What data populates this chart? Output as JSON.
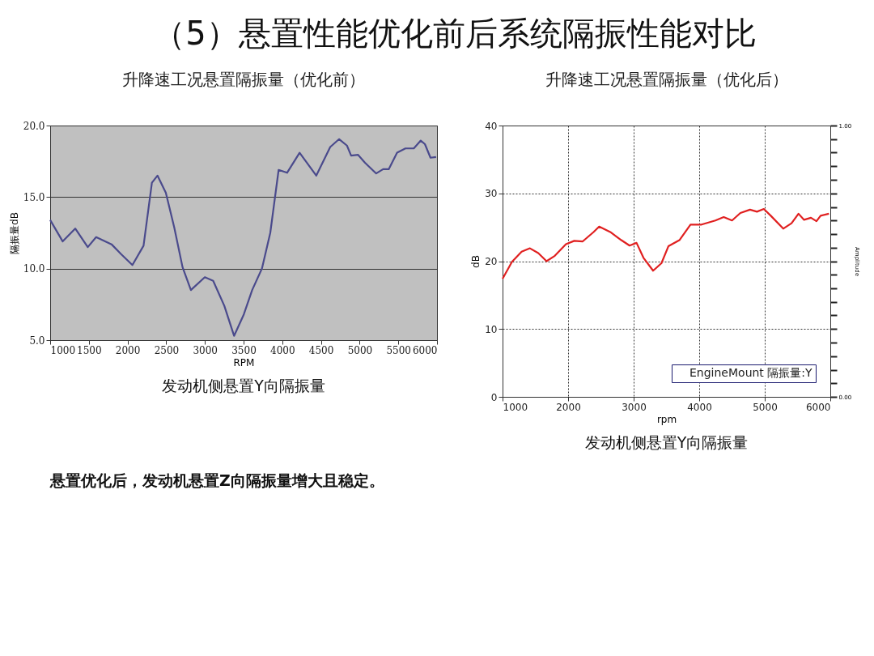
{
  "chart_data": [
    {
      "type": "line",
      "title": "升降速工况悬置隔振量（优化前）",
      "xlabel": "RPM",
      "ylabel": "隔振量dB",
      "annotations": [
        "（5）悬置性能优化前后系统隔振性能对比",
        "发动机侧悬置Y向隔振量"
      ],
      "xlim": [
        1000,
        6000
      ],
      "xticks": [
        1000,
        1500,
        2000,
        2500,
        3000,
        3500,
        4000,
        4500,
        5000,
        5500,
        6000
      ],
      "ylim": [
        5,
        20
      ],
      "yticks": [
        {
          "value": 5,
          "label": "5.0"
        },
        {
          "value": 10,
          "label": "10.0"
        },
        {
          "value": 15,
          "label": "15.0"
        },
        {
          "value": 20,
          "label": "20.0"
        }
      ],
      "grid": "y",
      "legend": false,
      "marker": "none",
      "line_style": "solid",
      "series": [
        {
          "color": "#4a4a8c",
          "x": [
            1000,
            1162,
            1324,
            1486,
            1594,
            1793,
            1919,
            2063,
            2207,
            2315,
            2387,
            2495,
            2603,
            2711,
            2819,
            2999,
            3107,
            3251,
            3377,
            3503,
            3611,
            3737,
            3845,
            3953,
            4062,
            4224,
            4440,
            4620,
            4735,
            4836,
            4890,
            4980,
            5070,
            5214,
            5304,
            5376,
            5484,
            5592,
            5700,
            5790,
            5844,
            5916,
            5988
          ],
          "values": [
            13.4,
            11.9,
            12.8,
            11.5,
            12.2,
            11.7,
            11.0,
            10.25,
            11.6,
            16.0,
            16.5,
            15.3,
            12.9,
            10.1,
            8.5,
            9.4,
            9.15,
            7.4,
            5.3,
            6.8,
            8.5,
            10.0,
            12.5,
            16.9,
            16.7,
            18.1,
            16.5,
            18.5,
            19.05,
            18.6,
            17.9,
            17.95,
            17.4,
            16.65,
            16.95,
            16.95,
            18.1,
            18.4,
            18.4,
            18.95,
            18.7,
            17.75,
            17.8
          ]
        }
      ]
    },
    {
      "type": "line",
      "title": "升降速工况悬置隔振量（优化后）",
      "xlabel": "rpm",
      "ylabel": "dB",
      "y2label": "Amplitude",
      "annotations": [
        "发动机侧悬置Y向隔振量",
        "悬置优化后，发动机悬置Z向隔振量增大且稳定。"
      ],
      "xlim": [
        1000,
        6000
      ],
      "xticks": [
        1000,
        2000,
        3000,
        4000,
        5000,
        6000
      ],
      "ylim": [
        0,
        40
      ],
      "yticks": [
        0,
        10,
        20,
        30,
        40
      ],
      "y2lim": [
        0,
        1
      ],
      "y2ticks": [
        {
          "value": 0,
          "label": "0.00"
        },
        {
          "value": 0.05,
          "label": null
        },
        {
          "value": 0.1,
          "label": null
        },
        {
          "value": 0.15,
          "label": null
        },
        {
          "value": 0.2,
          "label": null
        },
        {
          "value": 0.25,
          "label": null
        },
        {
          "value": 0.3,
          "label": null
        },
        {
          "value": 0.35,
          "label": null
        },
        {
          "value": 0.4,
          "label": null
        },
        {
          "value": 0.45,
          "label": null
        },
        {
          "value": 0.5,
          "label": null
        },
        {
          "value": 0.55,
          "label": null
        },
        {
          "value": 0.6,
          "label": null
        },
        {
          "value": 0.65,
          "label": null
        },
        {
          "value": 0.7,
          "label": null
        },
        {
          "value": 0.75,
          "label": null
        },
        {
          "value": 0.8,
          "label": null
        },
        {
          "value": 0.85,
          "label": null
        },
        {
          "value": 0.9,
          "label": null
        },
        {
          "value": 0.95,
          "label": null
        },
        {
          "value": 1,
          "label": "1.00"
        }
      ],
      "grid": true,
      "legend": "bottom right",
      "marker": "none",
      "line_style": "solid",
      "series": [
        {
          "name": "EngineMount 隔振量:Y",
          "color": "#e02020",
          "x": [
            1000,
            1144,
            1291,
            1418,
            1545,
            1671,
            1798,
            1967,
            2094,
            2220,
            2389,
            2474,
            2643,
            2812,
            2938,
            3044,
            3150,
            3297,
            3424,
            3530,
            3698,
            3867,
            4036,
            4247,
            4374,
            4501,
            4628,
            4775,
            4881,
            4986,
            5092,
            5282,
            5409,
            5515,
            5600,
            5705,
            5789,
            5852,
            5979
          ],
          "values": [
            17.4,
            19.9,
            21.4,
            21.9,
            21.2,
            20.0,
            20.8,
            22.5,
            23.0,
            22.9,
            24.3,
            25.1,
            24.3,
            23.1,
            22.3,
            22.7,
            20.5,
            18.6,
            19.7,
            22.2,
            23.1,
            25.4,
            25.4,
            26.0,
            26.5,
            26.0,
            27.1,
            27.6,
            27.3,
            27.7,
            26.7,
            24.8,
            25.6,
            27.0,
            26.1,
            26.4,
            25.9,
            26.7,
            27.0
          ]
        }
      ]
    }
  ]
}
